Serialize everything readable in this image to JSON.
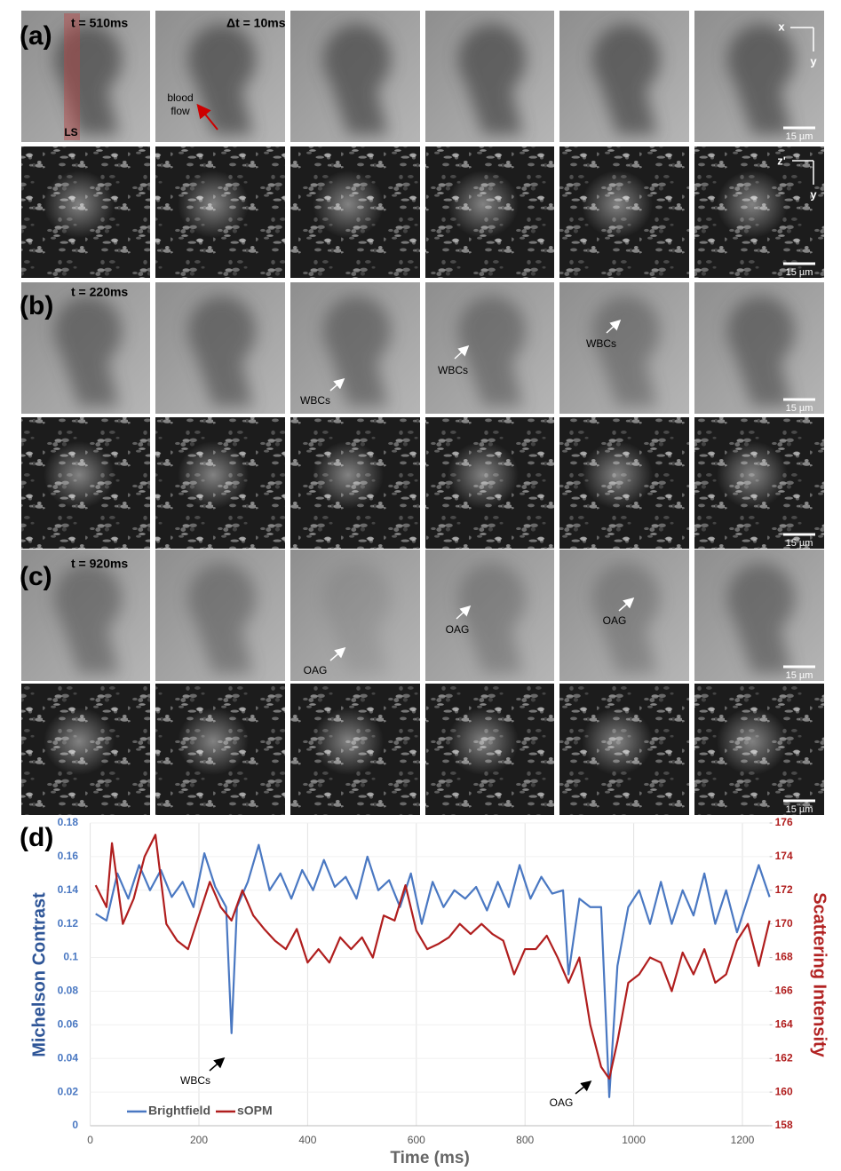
{
  "figure": {
    "panel_a": {
      "label": "(a)",
      "time": "t = 510ms",
      "interval": "Δt = 10ms",
      "flow": [
        "blood",
        "flow"
      ],
      "light_sheet": "LS",
      "axes_top": [
        "x",
        "y"
      ],
      "axes_bottom": [
        "z'",
        "y"
      ]
    },
    "panel_b": {
      "label": "(b)",
      "time": "t = 220ms",
      "annotations": [
        "WBCs",
        "WBCs",
        "WBCs"
      ]
    },
    "panel_c": {
      "label": "(c)",
      "time": "t = 920ms",
      "annotations": [
        "OAG",
        "OAG",
        "OAG"
      ]
    },
    "panel_d": {
      "label": "(d)"
    },
    "scale_bars": [
      "15 µm",
      "15 µm",
      "15 µm",
      "15 µm",
      "15 µm",
      "15 µm"
    ]
  },
  "chart_data": {
    "type": "line",
    "x_label": "Time (ms)",
    "y_label": "Michelson Contrast",
    "y2_label": "Scattering Intensity",
    "xlim": [
      0,
      1250
    ],
    "xticks": [
      0,
      200,
      400,
      600,
      800,
      1000,
      1200
    ],
    "ylim": [
      0,
      0.18
    ],
    "yticks": [
      0,
      0.02,
      0.04,
      0.06,
      0.08,
      0.1,
      0.12,
      0.14,
      0.16,
      0.18
    ],
    "y2lim": [
      158,
      176
    ],
    "y2ticks": [
      158,
      160,
      162,
      164,
      166,
      168,
      170,
      172,
      174,
      176
    ],
    "grid": true,
    "legend": "lower left",
    "annotations": [
      "WBCs",
      "OAG"
    ],
    "series": [
      {
        "name": "Brightfield",
        "color": "#4a78c2",
        "x": [
          10,
          30,
          50,
          70,
          90,
          110,
          130,
          150,
          170,
          190,
          210,
          230,
          250,
          260,
          270,
          290,
          310,
          330,
          350,
          370,
          390,
          410,
          430,
          450,
          470,
          490,
          510,
          530,
          550,
          570,
          590,
          610,
          630,
          650,
          670,
          690,
          710,
          730,
          750,
          770,
          790,
          810,
          830,
          850,
          870,
          880,
          900,
          920,
          940,
          955,
          970,
          990,
          1010,
          1030,
          1050,
          1070,
          1090,
          1110,
          1130,
          1150,
          1170,
          1190,
          1210,
          1230,
          1250
        ],
        "values": [
          0.126,
          0.122,
          0.15,
          0.135,
          0.155,
          0.14,
          0.152,
          0.136,
          0.145,
          0.13,
          0.162,
          0.142,
          0.13,
          0.055,
          0.13,
          0.145,
          0.167,
          0.14,
          0.15,
          0.135,
          0.152,
          0.14,
          0.158,
          0.142,
          0.148,
          0.135,
          0.16,
          0.14,
          0.146,
          0.13,
          0.15,
          0.12,
          0.145,
          0.13,
          0.14,
          0.135,
          0.142,
          0.128,
          0.145,
          0.13,
          0.155,
          0.135,
          0.148,
          0.138,
          0.14,
          0.09,
          0.135,
          0.13,
          0.13,
          0.017,
          0.095,
          0.13,
          0.14,
          0.12,
          0.145,
          0.12,
          0.14,
          0.125,
          0.15,
          0.12,
          0.14,
          0.115,
          0.135,
          0.155,
          0.136
        ]
      },
      {
        "name": "sOPM",
        "color": "#b01e1e",
        "axis": "y2",
        "x": [
          10,
          30,
          40,
          60,
          80,
          100,
          120,
          140,
          160,
          180,
          200,
          220,
          240,
          260,
          280,
          300,
          320,
          340,
          360,
          380,
          400,
          420,
          440,
          460,
          480,
          500,
          520,
          540,
          560,
          580,
          600,
          620,
          640,
          660,
          680,
          700,
          720,
          740,
          760,
          780,
          800,
          820,
          840,
          860,
          880,
          900,
          920,
          940,
          955,
          970,
          990,
          1010,
          1030,
          1050,
          1070,
          1090,
          1110,
          1130,
          1150,
          1170,
          1190,
          1210,
          1230,
          1250
        ],
        "values": [
          172.3,
          171,
          174.8,
          170,
          171.5,
          174,
          175.3,
          170,
          169,
          168.5,
          170.5,
          172.5,
          171,
          170.2,
          172,
          170.5,
          169.7,
          169,
          168.5,
          169.7,
          167.7,
          168.5,
          167.7,
          169.2,
          168.5,
          169.2,
          168,
          170.5,
          170.2,
          172.3,
          169.6,
          168.5,
          168.8,
          169.2,
          170,
          169.4,
          170,
          169.4,
          169,
          167,
          168.5,
          168.5,
          169.3,
          168,
          166.5,
          168,
          164,
          161.5,
          160.8,
          163,
          166.5,
          167,
          168,
          167.7,
          166,
          168.3,
          167,
          168.5,
          166.5,
          167,
          169,
          170,
          167.5,
          170.2
        ]
      }
    ]
  }
}
